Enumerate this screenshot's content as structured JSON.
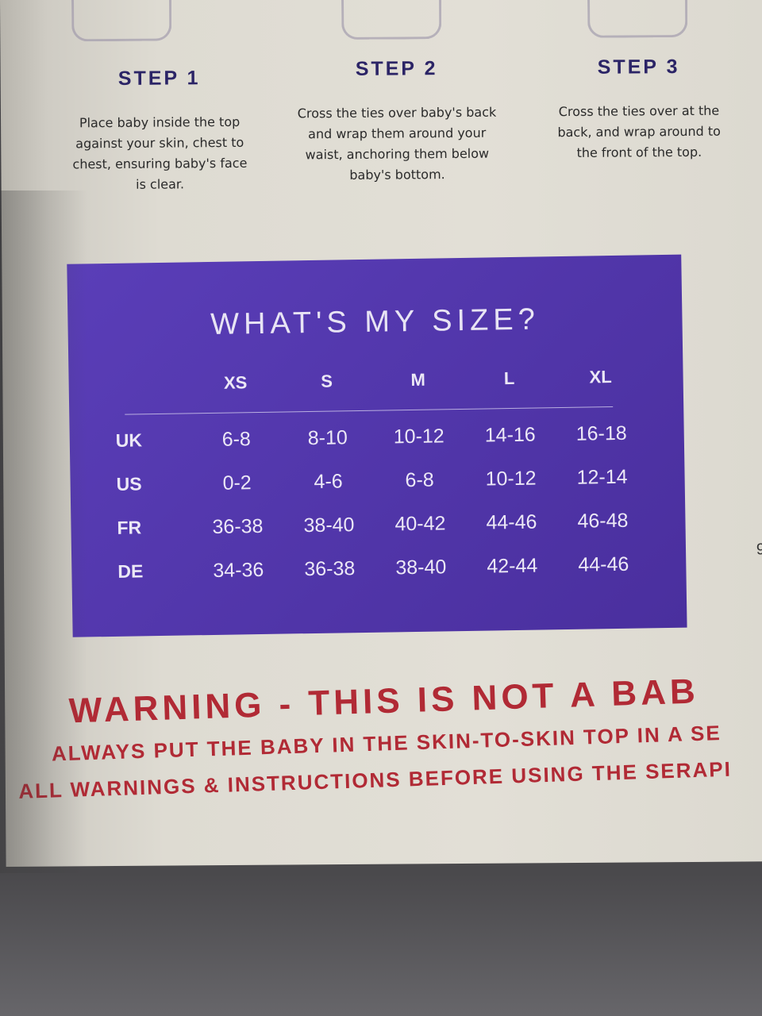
{
  "steps": [
    {
      "title": "STEP 1",
      "text": "Place baby inside the top against your skin, chest to chest, ensuring baby's face is clear."
    },
    {
      "title": "STEP 2",
      "text": "Cross the ties over baby's back and wrap them around your waist, anchoring them below baby's bottom."
    },
    {
      "title": "STEP 3",
      "text": "Cross the ties over at the back, and wrap around to the front of the top."
    }
  ],
  "size_chart": {
    "title": "WHAT'S MY SIZE?",
    "columns": [
      "XS",
      "S",
      "M",
      "L",
      "XL"
    ],
    "rows": [
      {
        "label": "UK",
        "values": [
          "6-8",
          "8-10",
          "10-12",
          "14-16",
          "16-18"
        ]
      },
      {
        "label": "US",
        "values": [
          "0-2",
          "4-6",
          "6-8",
          "10-12",
          "12-14"
        ]
      },
      {
        "label": "FR",
        "values": [
          "36-38",
          "38-40",
          "40-42",
          "44-46",
          "46-48"
        ]
      },
      {
        "label": "DE",
        "values": [
          "34-36",
          "36-38",
          "38-40",
          "42-44",
          "44-46"
        ]
      }
    ],
    "color": "#5a3eb8"
  },
  "warning": {
    "headline": "WARNING - THIS IS NOT A BAB",
    "line1": "ALWAYS PUT THE BABY IN THE SKIN-TO-SKIN TOP IN A SE",
    "line2": "ALL WARNINGS & INSTRUCTIONS BEFORE USING THE SERAPI",
    "color": "#b12a35"
  },
  "edge_text": "9"
}
